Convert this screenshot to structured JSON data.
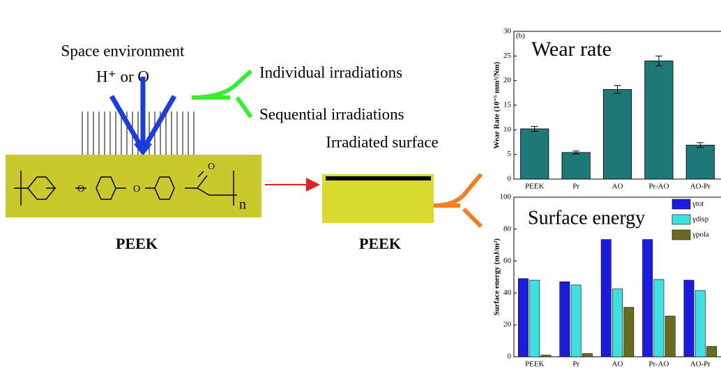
{
  "diagram": {
    "space_environment": "Space environment",
    "particles": "H⁺ or O",
    "individual": "Individual irradiations",
    "sequential": "Sequential irradiations",
    "irradiated_surface": "Irradiated surface",
    "peek_left": "PEEK",
    "peek_right": "PEEK",
    "ether_1": "O",
    "ether_2": "O",
    "carbonyl": "O",
    "repeat": "n"
  },
  "chart_data": [
    {
      "type": "bar",
      "panel": "(b)",
      "title": "Wear rate",
      "y_label": "Wear Rate (10⁻⁵ mm³/Nm)",
      "categories": [
        "PEEK",
        "Pr",
        "AO",
        "Pr-AO",
        "AO-Pr"
      ],
      "values": [
        10.2,
        5.4,
        18.2,
        24.0,
        6.9
      ],
      "errors": [
        0.5,
        0.3,
        0.8,
        1.0,
        0.5
      ],
      "color": "#1f7878",
      "ylim": [
        0,
        30
      ],
      "yticks": [
        0,
        5,
        10,
        15,
        20,
        25,
        30
      ]
    },
    {
      "type": "grouped_bar",
      "title": "Surface energy",
      "y_label": "Surface energy (mJ/m²)",
      "categories": [
        "PEEK",
        "Pr",
        "AO",
        "Pr-AO",
        "AO-Pr"
      ],
      "series": [
        {
          "name": "γtot",
          "color": "#1c1ce0",
          "values": [
            49,
            47,
            73.5,
            73.5,
            48
          ]
        },
        {
          "name": "γdisp",
          "color": "#3ee0e0",
          "values": [
            48,
            45,
            42.5,
            48.5,
            41.5
          ]
        },
        {
          "name": "γpola",
          "color": "#6b6b1e",
          "values": [
            1,
            2,
            31,
            25.5,
            6.5
          ]
        }
      ],
      "ylim": [
        0,
        100
      ],
      "yticks": [
        0,
        20,
        40,
        60,
        80,
        100
      ]
    }
  ]
}
